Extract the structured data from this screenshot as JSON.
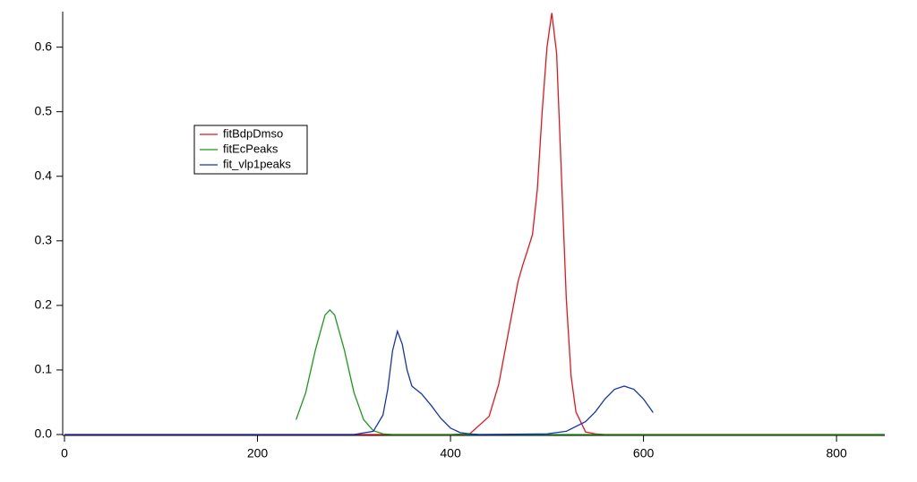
{
  "chart_data": {
    "type": "line",
    "legend": "upper-left",
    "xlim": [
      0,
      850
    ],
    "ylim": [
      0,
      0.655
    ],
    "xticks": [
      0,
      200,
      400,
      600,
      800
    ],
    "yticks": [
      {
        "value": 0,
        "label": "0.0"
      },
      0.1,
      0.2,
      0.3,
      0.4,
      0.5,
      0.6
    ],
    "series": [
      {
        "name": "fitBdpDmso",
        "color": "#e8141b",
        "x": [
          0,
          400,
          420,
          440,
          450,
          460,
          470,
          475,
          480,
          485,
          490,
          495,
          500,
          505,
          510,
          515,
          520,
          525,
          530,
          540,
          550,
          560,
          850
        ],
        "values": [
          0,
          0,
          0.001,
          0.028,
          0.078,
          0.158,
          0.237,
          0.263,
          0.286,
          0.31,
          0.38,
          0.5,
          0.6,
          0.653,
          0.59,
          0.4,
          0.21,
          0.09,
          0.035,
          0.004,
          0.001,
          0,
          0
        ]
      },
      {
        "name": "fitEcPeaks",
        "color": "#1a9a1a",
        "x": [
          240,
          250,
          260,
          270,
          275,
          280,
          290,
          300,
          310,
          320,
          330,
          340,
          850
        ],
        "values": [
          0.023,
          0.065,
          0.131,
          0.185,
          0.193,
          0.185,
          0.131,
          0.065,
          0.023,
          0.006,
          0.001,
          0,
          0
        ]
      },
      {
        "name": "fit_vlp1peaks",
        "color": "#1535b4",
        "x": [
          0,
          300,
          320,
          330,
          335,
          340,
          345,
          350,
          355,
          360,
          370,
          380,
          390,
          400,
          410,
          420,
          430,
          500,
          520,
          540,
          550,
          560,
          570,
          580,
          590,
          600,
          610
        ],
        "values": [
          0,
          0,
          0.005,
          0.03,
          0.07,
          0.13,
          0.16,
          0.14,
          0.1,
          0.075,
          0.063,
          0.045,
          0.025,
          0.01,
          0.003,
          0.001,
          0,
          0.001,
          0.005,
          0.02,
          0.035,
          0.055,
          0.07,
          0.075,
          0.07,
          0.055,
          0.034
        ]
      }
    ]
  }
}
